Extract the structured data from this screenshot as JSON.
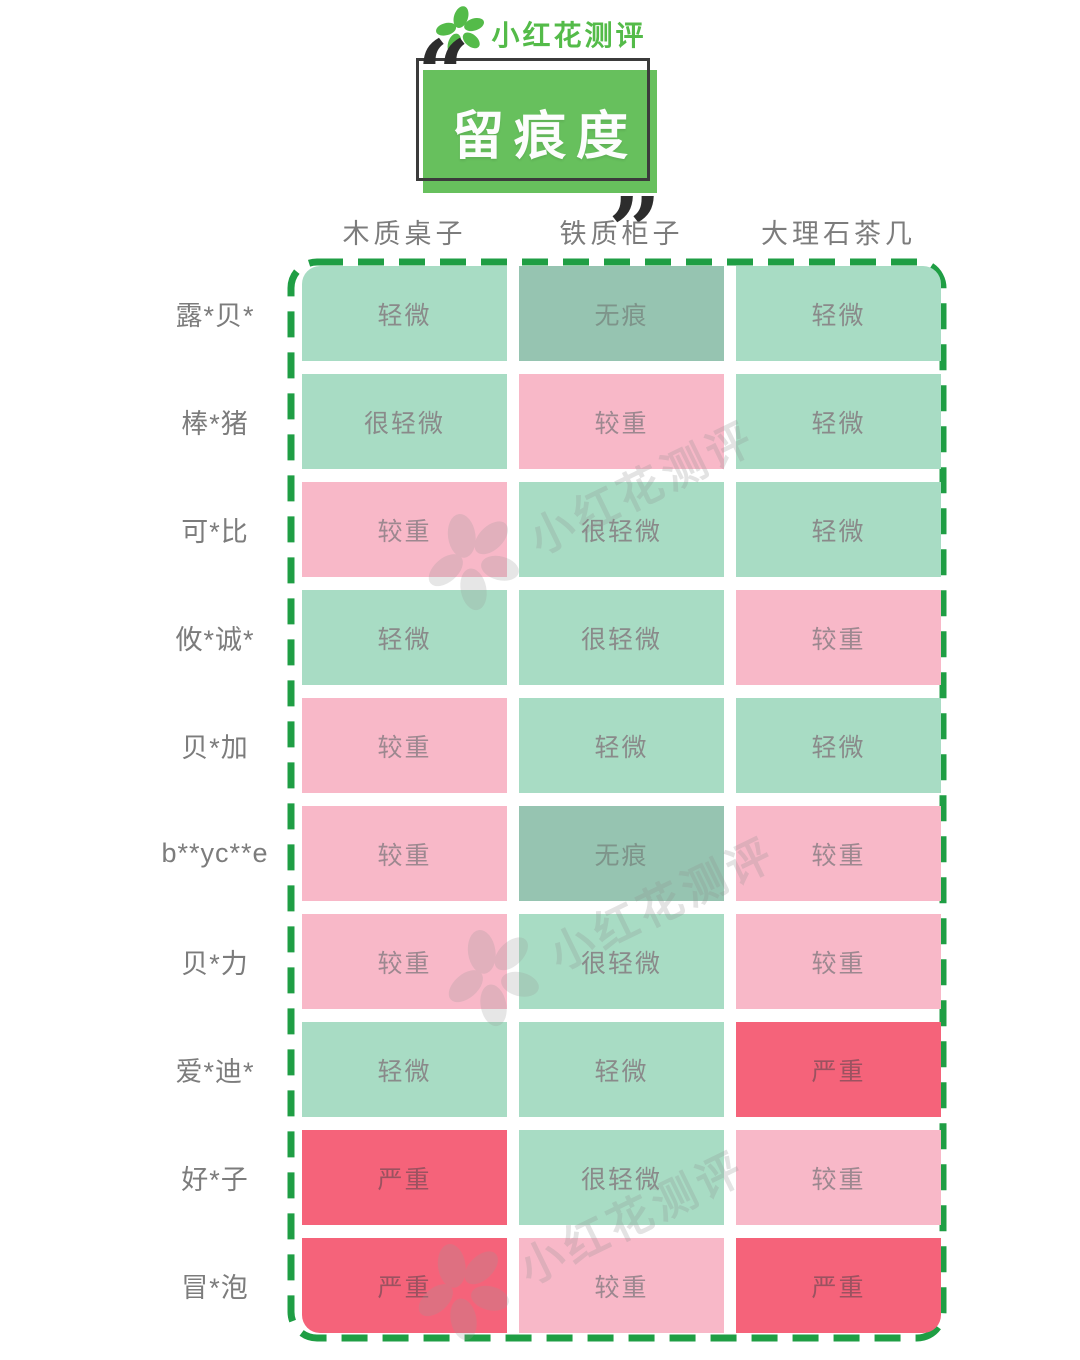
{
  "logo": {
    "text": "小红花测评"
  },
  "title": {
    "text": "留痕度",
    "quote_open": "“",
    "quote_close": "”"
  },
  "watermark": {
    "text": "小红花测评"
  },
  "colors": {
    "title_green": "#67c05d",
    "logo_green": "#54bb49",
    "dash_green": "#1f9e44",
    "cell_light_green": "#a8dcc4",
    "cell_dark_green": "#96c4b1",
    "cell_pink": "#f8b8c8",
    "cell_red": "#f5637a",
    "cell_text": "#8a8a8a",
    "severe_text": "#9b5260"
  },
  "chart_data": {
    "type": "heatmap",
    "title": "留痕度",
    "columns": [
      "木质桌子",
      "铁质柜子",
      "大理石茶几"
    ],
    "level_colors": {
      "none": "#96c4b1",
      "slight": "#a8dcc4",
      "heavy": "#f8b8c8",
      "severe": "#f5637a"
    },
    "rows": [
      {
        "label": "露*贝*",
        "cells": [
          {
            "text": "轻微",
            "level": "slight"
          },
          {
            "text": "无痕",
            "level": "none"
          },
          {
            "text": "轻微",
            "level": "slight"
          }
        ]
      },
      {
        "label": "棒*猪",
        "cells": [
          {
            "text": "很轻微",
            "level": "slight"
          },
          {
            "text": "较重",
            "level": "heavy"
          },
          {
            "text": "轻微",
            "level": "slight"
          }
        ]
      },
      {
        "label": "可*比",
        "cells": [
          {
            "text": "较重",
            "level": "heavy"
          },
          {
            "text": "很轻微",
            "level": "slight"
          },
          {
            "text": "轻微",
            "level": "slight"
          }
        ]
      },
      {
        "label": "攸*诚*",
        "cells": [
          {
            "text": "轻微",
            "level": "slight"
          },
          {
            "text": "很轻微",
            "level": "slight"
          },
          {
            "text": "较重",
            "level": "heavy"
          }
        ]
      },
      {
        "label": "贝*加",
        "cells": [
          {
            "text": "较重",
            "level": "heavy"
          },
          {
            "text": "轻微",
            "level": "slight"
          },
          {
            "text": "轻微",
            "level": "slight"
          }
        ]
      },
      {
        "label": "b**yc**e",
        "cells": [
          {
            "text": "较重",
            "level": "heavy"
          },
          {
            "text": "无痕",
            "level": "none"
          },
          {
            "text": "较重",
            "level": "heavy"
          }
        ]
      },
      {
        "label": "贝*力",
        "cells": [
          {
            "text": "较重",
            "level": "heavy"
          },
          {
            "text": "很轻微",
            "level": "slight"
          },
          {
            "text": "较重",
            "level": "heavy"
          }
        ]
      },
      {
        "label": "爱*迪*",
        "cells": [
          {
            "text": "轻微",
            "level": "slight"
          },
          {
            "text": "轻微",
            "level": "slight"
          },
          {
            "text": "严重",
            "level": "severe"
          }
        ]
      },
      {
        "label": "好*子",
        "cells": [
          {
            "text": "严重",
            "level": "severe"
          },
          {
            "text": "很轻微",
            "level": "slight"
          },
          {
            "text": "较重",
            "level": "heavy"
          }
        ]
      },
      {
        "label": "冒*泡",
        "cells": [
          {
            "text": "严重",
            "level": "severe"
          },
          {
            "text": "较重",
            "level": "heavy"
          },
          {
            "text": "严重",
            "level": "severe"
          }
        ]
      }
    ]
  }
}
